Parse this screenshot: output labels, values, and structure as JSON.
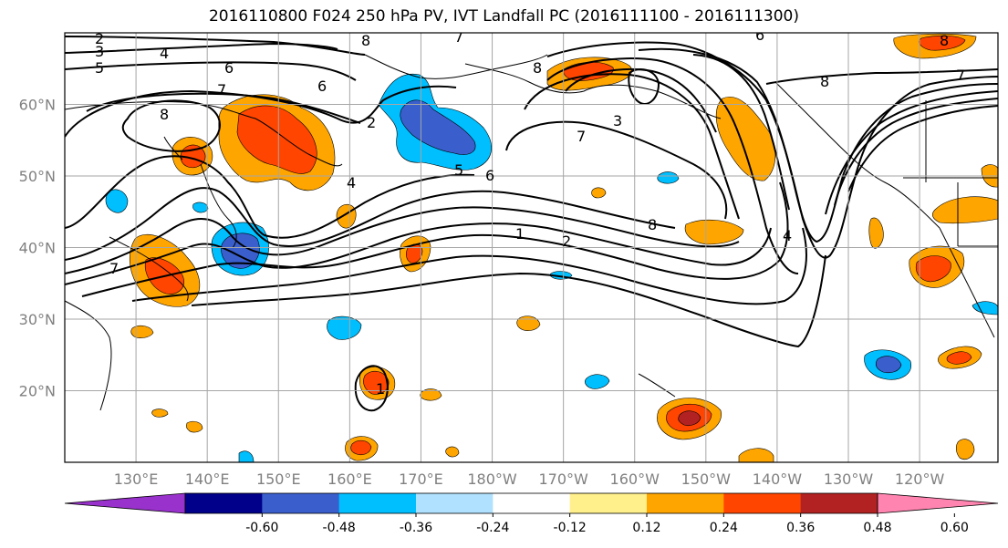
{
  "title": "2016110800 F024 250 hPa PV, IVT Landfall PC (2016111100 - 2016111300)",
  "map": {
    "lon_range": [
      120,
      251
    ],
    "lat_range": [
      10,
      70
    ],
    "lat_labels": [
      "20°N",
      "30°N",
      "40°N",
      "50°N",
      "60°N"
    ],
    "lat_values": [
      20,
      30,
      40,
      50,
      60
    ],
    "lon_labels": [
      "130°E",
      "140°E",
      "150°E",
      "160°E",
      "170°E",
      "180°W",
      "170°W",
      "160°W",
      "150°W",
      "140°W",
      "130°W",
      "120°W"
    ],
    "lon_values": [
      130,
      140,
      150,
      160,
      170,
      180,
      190,
      200,
      210,
      220,
      230,
      240
    ],
    "grid": true,
    "contour_labels": [
      "2",
      "3",
      "5",
      "4",
      "6",
      "7",
      "8",
      "6",
      "8",
      "7",
      "8",
      "6",
      "8",
      "3",
      "2",
      "4",
      "5",
      "6",
      "1",
      "2",
      "8",
      "7",
      "7",
      "4",
      "1",
      "8",
      "7"
    ]
  },
  "colorbar": {
    "ticks": [
      "-0.60",
      "-0.48",
      "-0.36",
      "-0.24",
      "-0.12",
      "0.12",
      "0.24",
      "0.36",
      "0.48",
      "0.60"
    ],
    "colors": [
      "#9932cc",
      "#00008b",
      "#3a5fcd",
      "#00bfff",
      "#b0e2ff",
      "#ffffff",
      "#fff08c",
      "#ffa500",
      "#ff4500",
      "#b22222",
      "#ff85b0"
    ],
    "extend": "both"
  }
}
